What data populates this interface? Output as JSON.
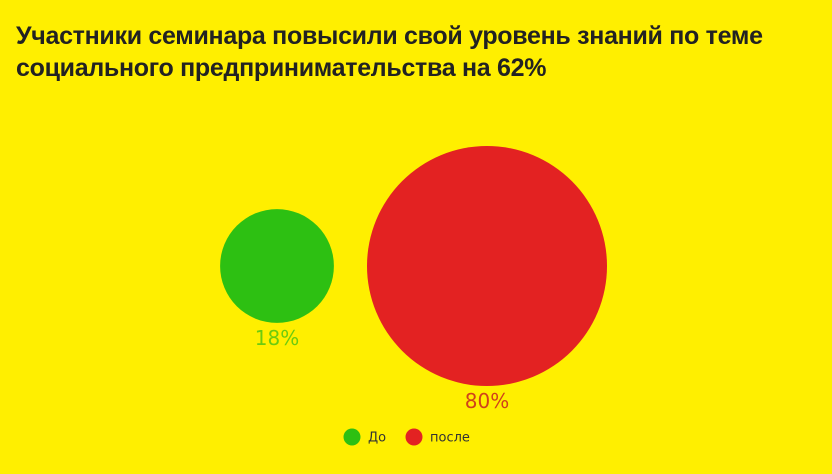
{
  "title": "Участники семинара повысили свой уровень знаний по теме социального предпринимательства на 62%",
  "colors": {
    "background": "#FFEF00",
    "before": "#2DC012",
    "after": "#E32222",
    "before_label": "#6CCB0F",
    "after_label": "#D0421A"
  },
  "chart_data": {
    "type": "bubble",
    "title": "Участники семинара повысили свой уровень знаний по теме социального предпринимательства на 62%",
    "series": [
      {
        "name": "До",
        "value": 18,
        "label": "18%",
        "color": "#2DC012"
      },
      {
        "name": "после",
        "value": 80,
        "label": "80%",
        "color": "#E32222"
      }
    ],
    "legend": {
      "position": "bottom",
      "items": [
        "До",
        "после"
      ]
    },
    "grid": false
  }
}
